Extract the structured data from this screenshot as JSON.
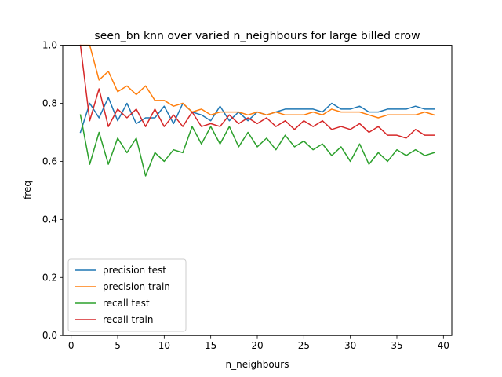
{
  "chart_data": {
    "type": "line",
    "title": "seen_bn knn over varied n_neighbours for large billed crow",
    "xlabel": "n_neighbours",
    "ylabel": "freq",
    "xlim": [
      -0.9,
      40.9
    ],
    "ylim": [
      0.0,
      1.0
    ],
    "xticks": [
      0,
      5,
      10,
      15,
      20,
      25,
      30,
      35,
      40
    ],
    "yticks": [
      0.0,
      0.2,
      0.4,
      0.6,
      0.8,
      1.0
    ],
    "xtick_labels": [
      "0",
      "5",
      "10",
      "15",
      "20",
      "25",
      "30",
      "35",
      "40"
    ],
    "ytick_labels": [
      "0.0",
      "0.2",
      "0.4",
      "0.6",
      "0.8",
      "1.0"
    ],
    "grid": false,
    "legend_position": "lower-left",
    "x": [
      1,
      2,
      3,
      4,
      5,
      6,
      7,
      8,
      9,
      10,
      11,
      12,
      13,
      14,
      15,
      16,
      17,
      18,
      19,
      20,
      21,
      22,
      23,
      24,
      25,
      26,
      27,
      28,
      29,
      30,
      31,
      32,
      33,
      34,
      35,
      36,
      37,
      38,
      39
    ],
    "series": [
      {
        "name": "precision test",
        "color": "#1f77b4",
        "values": [
          0.7,
          0.8,
          0.75,
          0.82,
          0.74,
          0.8,
          0.73,
          0.75,
          0.75,
          0.79,
          0.73,
          0.8,
          0.77,
          0.76,
          0.74,
          0.79,
          0.74,
          0.77,
          0.74,
          0.77,
          0.76,
          0.77,
          0.78,
          0.78,
          0.78,
          0.78,
          0.77,
          0.8,
          0.78,
          0.78,
          0.79,
          0.77,
          0.77,
          0.78,
          0.78,
          0.78,
          0.79,
          0.78,
          0.78
        ]
      },
      {
        "name": "precision train",
        "color": "#ff7f0e",
        "values": [
          1.0,
          1.0,
          0.88,
          0.91,
          0.84,
          0.86,
          0.83,
          0.86,
          0.81,
          0.81,
          0.79,
          0.8,
          0.77,
          0.78,
          0.76,
          0.77,
          0.77,
          0.77,
          0.76,
          0.77,
          0.76,
          0.77,
          0.76,
          0.76,
          0.76,
          0.77,
          0.76,
          0.78,
          0.77,
          0.77,
          0.77,
          0.76,
          0.75,
          0.76,
          0.76,
          0.76,
          0.76,
          0.77,
          0.76
        ]
      },
      {
        "name": "recall test",
        "color": "#2ca02c",
        "values": [
          0.76,
          0.59,
          0.7,
          0.59,
          0.68,
          0.63,
          0.68,
          0.55,
          0.63,
          0.6,
          0.64,
          0.63,
          0.72,
          0.66,
          0.72,
          0.66,
          0.72,
          0.65,
          0.7,
          0.65,
          0.68,
          0.64,
          0.69,
          0.65,
          0.67,
          0.64,
          0.66,
          0.62,
          0.65,
          0.6,
          0.66,
          0.59,
          0.63,
          0.6,
          0.64,
          0.62,
          0.64,
          0.62,
          0.63
        ]
      },
      {
        "name": "recall train",
        "color": "#d62728",
        "values": [
          1.0,
          0.74,
          0.85,
          0.72,
          0.78,
          0.75,
          0.78,
          0.72,
          0.78,
          0.72,
          0.76,
          0.72,
          0.77,
          0.72,
          0.73,
          0.72,
          0.76,
          0.73,
          0.75,
          0.73,
          0.75,
          0.72,
          0.74,
          0.71,
          0.74,
          0.72,
          0.74,
          0.71,
          0.72,
          0.71,
          0.73,
          0.7,
          0.72,
          0.69,
          0.69,
          0.68,
          0.71,
          0.69,
          0.69
        ]
      }
    ]
  }
}
